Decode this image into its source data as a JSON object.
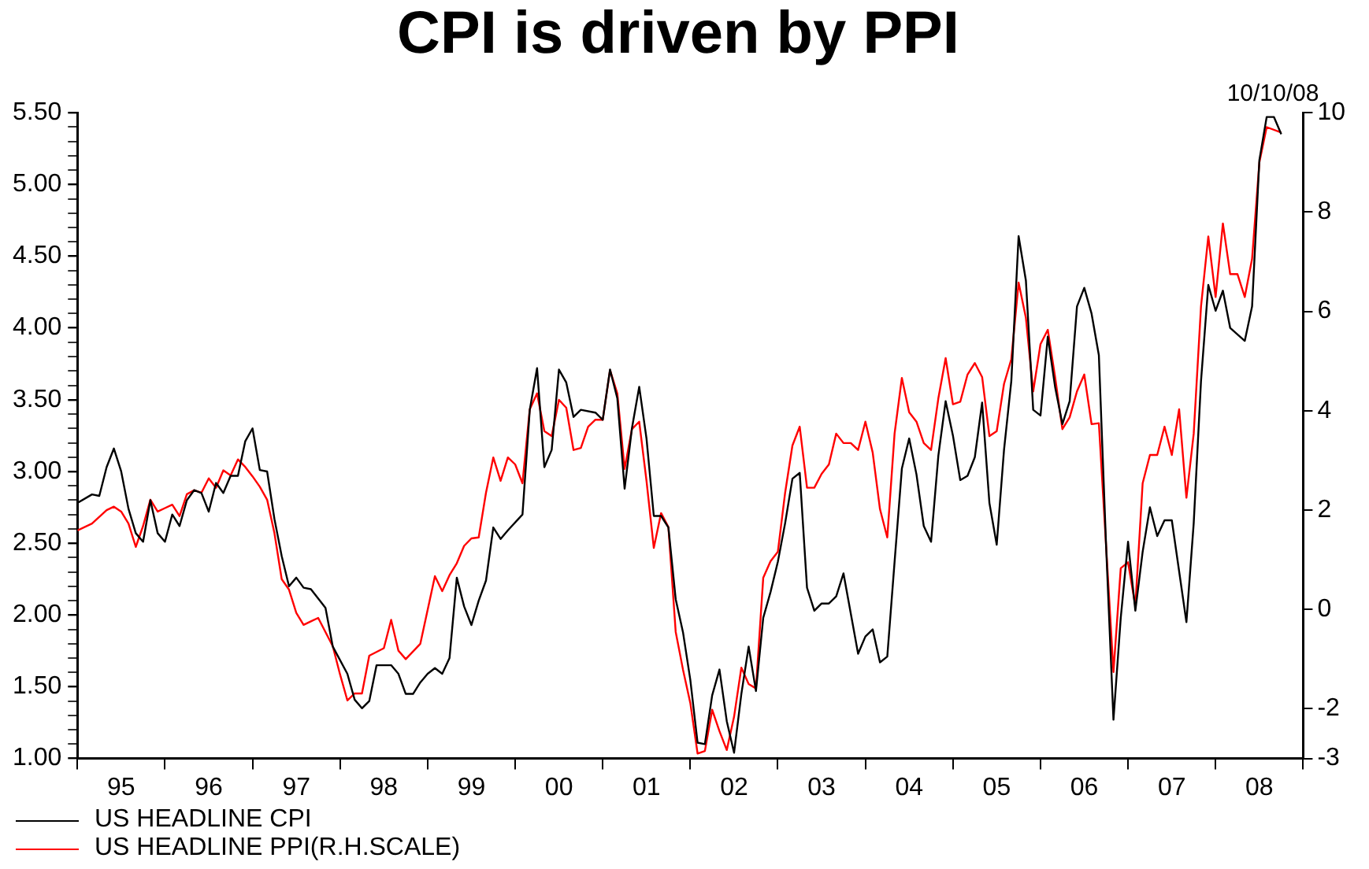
{
  "chart_data": {
    "type": "line",
    "title": "CPI is driven by PPI",
    "annotations": [
      "10/10/08"
    ],
    "legend": "bottom left",
    "marker": "none",
    "line_style": "solid",
    "grid": false,
    "xlim": [
      "1995-01",
      "2009-01"
    ],
    "xticks": [
      {
        "value": "1995-01",
        "label": null
      },
      {
        "value": "1995-07",
        "label": "95"
      },
      {
        "value": "1996-01",
        "label": null
      },
      {
        "value": "1996-07",
        "label": "96"
      },
      {
        "value": "1997-01",
        "label": null
      },
      {
        "value": "1997-07",
        "label": "97"
      },
      {
        "value": "1998-01",
        "label": null
      },
      {
        "value": "1998-07",
        "label": "98"
      },
      {
        "value": "1999-01",
        "label": null
      },
      {
        "value": "1999-07",
        "label": "99"
      },
      {
        "value": "2000-01",
        "label": null
      },
      {
        "value": "2000-07",
        "label": "00"
      },
      {
        "value": "2001-01",
        "label": null
      },
      {
        "value": "2001-07",
        "label": "01"
      },
      {
        "value": "2002-01",
        "label": null
      },
      {
        "value": "2002-07",
        "label": "02"
      },
      {
        "value": "2003-01",
        "label": null
      },
      {
        "value": "2003-07",
        "label": "03"
      },
      {
        "value": "2004-01",
        "label": null
      },
      {
        "value": "2004-07",
        "label": "04"
      },
      {
        "value": "2005-01",
        "label": null
      },
      {
        "value": "2005-07",
        "label": "05"
      },
      {
        "value": "2006-01",
        "label": null
      },
      {
        "value": "2006-07",
        "label": "06"
      },
      {
        "value": "2007-01",
        "label": null
      },
      {
        "value": "2007-07",
        "label": "07"
      },
      {
        "value": "2008-01",
        "label": null
      },
      {
        "value": "2008-07",
        "label": "08"
      },
      {
        "value": "2009-01",
        "label": null
      }
    ],
    "ylim": [
      1,
      5.5
    ],
    "yticks": [
      {
        "value": 1,
        "label": "1.00"
      },
      {
        "value": 1.1,
        "label": null
      },
      {
        "value": 1.2,
        "label": null
      },
      {
        "value": 1.3,
        "label": null
      },
      {
        "value": 1.4,
        "label": null
      },
      {
        "value": 1.5,
        "label": "1.50"
      },
      {
        "value": 1.6,
        "label": null
      },
      {
        "value": 1.7,
        "label": null
      },
      {
        "value": 1.8,
        "label": null
      },
      {
        "value": 1.9,
        "label": null
      },
      {
        "value": 2,
        "label": "2.00"
      },
      {
        "value": 2.1,
        "label": null
      },
      {
        "value": 2.2,
        "label": null
      },
      {
        "value": 2.3,
        "label": null
      },
      {
        "value": 2.4,
        "label": null
      },
      {
        "value": 2.5,
        "label": "2.50"
      },
      {
        "value": 2.6,
        "label": null
      },
      {
        "value": 2.7,
        "label": null
      },
      {
        "value": 2.8,
        "label": null
      },
      {
        "value": 2.9,
        "label": null
      },
      {
        "value": 3,
        "label": "3.00"
      },
      {
        "value": 3.1,
        "label": null
      },
      {
        "value": 3.2,
        "label": null
      },
      {
        "value": 3.3,
        "label": null
      },
      {
        "value": 3.4,
        "label": null
      },
      {
        "value": 3.5,
        "label": "3.50"
      },
      {
        "value": 3.6,
        "label": null
      },
      {
        "value": 3.7,
        "label": null
      },
      {
        "value": 3.8,
        "label": null
      },
      {
        "value": 3.9,
        "label": null
      },
      {
        "value": 4,
        "label": "4.00"
      },
      {
        "value": 4.1,
        "label": null
      },
      {
        "value": 4.2,
        "label": null
      },
      {
        "value": 4.3,
        "label": null
      },
      {
        "value": 4.4,
        "label": null
      },
      {
        "value": 4.5,
        "label": "4.50"
      },
      {
        "value": 4.6,
        "label": null
      },
      {
        "value": 4.7,
        "label": null
      },
      {
        "value": 4.8,
        "label": null
      },
      {
        "value": 4.9,
        "label": null
      },
      {
        "value": 5,
        "label": "5.00"
      },
      {
        "value": 5.1,
        "label": null
      },
      {
        "value": 5.2,
        "label": null
      },
      {
        "value": 5.3,
        "label": null
      },
      {
        "value": 5.4,
        "label": null
      },
      {
        "value": 5.5,
        "label": "5.50"
      }
    ],
    "y2lim": [
      -3,
      10
    ],
    "y2ticks": [
      -3,
      -2,
      0,
      2,
      4,
      6,
      8,
      10
    ],
    "series": [
      {
        "name": "US HEADLINE CPI",
        "color": "#000000",
        "x": [
          "1995-01",
          "1995-03",
          "1995-04",
          "1995-05",
          "1995-06",
          "1995-07",
          "1995-08",
          "1995-09",
          "1995-10",
          "1995-11",
          "1995-12",
          "1996-01",
          "1996-02",
          "1996-03",
          "1996-04",
          "1996-05",
          "1996-06",
          "1996-07",
          "1996-08",
          "1996-09",
          "1996-10",
          "1996-11",
          "1996-12",
          "1997-01",
          "1997-02",
          "1997-03",
          "1997-04",
          "1997-05",
          "1997-06",
          "1997-07",
          "1997-08",
          "1997-09",
          "1997-11",
          "1997-12",
          "1998-02",
          "1998-03",
          "1998-04",
          "1998-05",
          "1998-06",
          "1998-08",
          "1998-09",
          "1998-10",
          "1998-11",
          "1998-12",
          "1999-01",
          "1999-02",
          "1999-03",
          "1999-04",
          "1999-05",
          "1999-06",
          "1999-07",
          "1999-08",
          "1999-09",
          "1999-10",
          "1999-11",
          "1999-12",
          "2000-02",
          "2000-03",
          "2000-04",
          "2000-05",
          "2000-06",
          "2000-07",
          "2000-08",
          "2000-09",
          "2000-10",
          "2000-12",
          "2001-01",
          "2001-02",
          "2001-03",
          "2001-04",
          "2001-05",
          "2001-06",
          "2001-07",
          "2001-08",
          "2001-09",
          "2001-10",
          "2001-11",
          "2001-12",
          "2002-01",
          "2002-02",
          "2002-03",
          "2002-04",
          "2002-05",
          "2002-06",
          "2002-07",
          "2002-08",
          "2002-09",
          "2002-10",
          "2002-11",
          "2002-12",
          "2003-01",
          "2003-02",
          "2003-03",
          "2003-04",
          "2003-05",
          "2003-06",
          "2003-07",
          "2003-08",
          "2003-09",
          "2003-10",
          "2003-11",
          "2003-12",
          "2004-01",
          "2004-02",
          "2004-03",
          "2004-04",
          "2004-05",
          "2004-06",
          "2004-07",
          "2004-08",
          "2004-09",
          "2004-10",
          "2004-11",
          "2004-12",
          "2005-01",
          "2005-02",
          "2005-03",
          "2005-04",
          "2005-05",
          "2005-06",
          "2005-07",
          "2005-08",
          "2005-09",
          "2005-10",
          "2005-11",
          "2005-12",
          "2006-01",
          "2006-02",
          "2006-03",
          "2006-04",
          "2006-05",
          "2006-06",
          "2006-07",
          "2006-08",
          "2006-09",
          "2006-10",
          "2006-11",
          "2006-12",
          "2007-01",
          "2007-02",
          "2007-03",
          "2007-04",
          "2007-05",
          "2007-06",
          "2007-07",
          "2007-09",
          "2007-10",
          "2007-11",
          "2007-12",
          "2008-01",
          "2008-02",
          "2008-03",
          "2008-05",
          "2008-06",
          "2008-07",
          "2008-08",
          "2008-09",
          "2008-10"
        ],
        "values": [
          2.78,
          2.84,
          2.83,
          3.03,
          3.16,
          3.0,
          2.74,
          2.57,
          2.51,
          2.8,
          2.57,
          2.51,
          2.7,
          2.62,
          2.8,
          2.87,
          2.85,
          2.72,
          2.92,
          2.85,
          2.97,
          2.97,
          3.21,
          3.3,
          3.01,
          3.0,
          2.67,
          2.41,
          2.2,
          2.26,
          2.19,
          2.18,
          2.05,
          1.78,
          1.59,
          1.41,
          1.35,
          1.4,
          1.65,
          1.65,
          1.59,
          1.45,
          1.45,
          1.53,
          1.59,
          1.63,
          1.59,
          1.7,
          2.26,
          2.06,
          1.93,
          2.1,
          2.24,
          2.61,
          2.53,
          2.59,
          2.7,
          3.43,
          3.72,
          3.03,
          3.15,
          3.71,
          3.62,
          3.38,
          3.43,
          3.41,
          3.36,
          3.71,
          3.51,
          2.88,
          3.3,
          3.59,
          3.23,
          2.69,
          2.69,
          2.61,
          2.11,
          1.88,
          1.55,
          1.11,
          1.1,
          1.44,
          1.62,
          1.26,
          1.04,
          1.45,
          1.78,
          1.47,
          1.98,
          2.16,
          2.37,
          2.64,
          2.95,
          2.99,
          2.19,
          2.03,
          2.08,
          2.08,
          2.13,
          2.29,
          2.01,
          1.73,
          1.85,
          1.9,
          1.67,
          1.71,
          2.37,
          3.02,
          3.23,
          2.98,
          2.62,
          2.51,
          3.11,
          3.49,
          3.25,
          2.94,
          2.97,
          3.1,
          3.48,
          2.78,
          2.49,
          3.15,
          3.63,
          4.64,
          4.33,
          3.43,
          3.39,
          3.94,
          3.59,
          3.33,
          3.49,
          4.15,
          4.28,
          4.1,
          3.81,
          2.47,
          1.27,
          1.98,
          2.51,
          2.03,
          2.44,
          2.75,
          2.55,
          2.66,
          2.66,
          1.95,
          2.64,
          3.63,
          4.3,
          4.12,
          4.26,
          4.0,
          3.91,
          4.15,
          5.17,
          5.47,
          5.47,
          5.35
        ]
      },
      {
        "name": "US HEADLINE PPI(R.H.SCALE)",
        "color": "#ff0000",
        "axis": "y2",
        "x": [
          "1995-01",
          "1995-03",
          "1995-05",
          "1995-06",
          "1995-07",
          "1995-08",
          "1995-09",
          "1995-10",
          "1995-11",
          "1995-12",
          "1996-01",
          "1996-02",
          "1996-03",
          "1996-04",
          "1996-05",
          "1996-06",
          "1996-07",
          "1996-08",
          "1996-09",
          "1996-10",
          "1996-11",
          "1996-12",
          "1997-01",
          "1997-02",
          "1997-03",
          "1997-04",
          "1997-05",
          "1997-06",
          "1997-07",
          "1997-08",
          "1997-09",
          "1997-10",
          "1997-12",
          "1998-01",
          "1998-02",
          "1998-03",
          "1998-04",
          "1998-05",
          "1998-07",
          "1998-08",
          "1998-09",
          "1998-10",
          "1998-12",
          "1999-02",
          "1999-03",
          "1999-04",
          "1999-05",
          "1999-06",
          "1999-07",
          "1999-08",
          "1999-09",
          "1999-10",
          "1999-11",
          "1999-12",
          "2000-01",
          "2000-02",
          "2000-03",
          "2000-04",
          "2000-05",
          "2000-06",
          "2000-07",
          "2000-08",
          "2000-09",
          "2000-10",
          "2000-11",
          "2000-12",
          "2001-01",
          "2001-02",
          "2001-03",
          "2001-04",
          "2001-05",
          "2001-06",
          "2001-07",
          "2001-08",
          "2001-09",
          "2001-10",
          "2001-11",
          "2001-12",
          "2002-01",
          "2002-02",
          "2002-03",
          "2002-04",
          "2002-05",
          "2002-06",
          "2002-07",
          "2002-08",
          "2002-09",
          "2002-10",
          "2002-11",
          "2002-12",
          "2003-01",
          "2003-02",
          "2003-03",
          "2003-04",
          "2003-05",
          "2003-06",
          "2003-07",
          "2003-08",
          "2003-09",
          "2003-10",
          "2003-11",
          "2003-12",
          "2004-01",
          "2004-02",
          "2004-03",
          "2004-04",
          "2004-05",
          "2004-06",
          "2004-07",
          "2004-08",
          "2004-09",
          "2004-10",
          "2004-11",
          "2004-12",
          "2005-01",
          "2005-02",
          "2005-03",
          "2005-04",
          "2005-05",
          "2005-06",
          "2005-07",
          "2005-08",
          "2005-09",
          "2005-10",
          "2005-11",
          "2005-12",
          "2006-01",
          "2006-02",
          "2006-03",
          "2006-04",
          "2006-05",
          "2006-06",
          "2006-07",
          "2006-08",
          "2006-09",
          "2006-10",
          "2006-11",
          "2006-12",
          "2007-01",
          "2007-02",
          "2007-03",
          "2007-04",
          "2007-05",
          "2007-06",
          "2007-07",
          "2007-08",
          "2007-09",
          "2007-10",
          "2007-11",
          "2007-12",
          "2008-01",
          "2008-02",
          "2008-03",
          "2008-04",
          "2008-05",
          "2008-06",
          "2008-07",
          "2008-08",
          "2008-10"
        ],
        "values": [
          1.59,
          1.73,
          2.0,
          2.07,
          1.97,
          1.73,
          1.26,
          1.68,
          2.21,
          1.97,
          2.04,
          2.11,
          1.88,
          2.32,
          2.4,
          2.35,
          2.64,
          2.45,
          2.8,
          2.7,
          3.02,
          2.87,
          2.68,
          2.47,
          2.21,
          1.54,
          0.61,
          0.4,
          -0.07,
          -0.31,
          -0.24,
          -0.17,
          -0.74,
          -1.31,
          -1.83,
          -1.69,
          -1.69,
          -0.93,
          -0.78,
          -0.21,
          -0.83,
          -1.0,
          -0.69,
          0.67,
          0.37,
          0.69,
          0.93,
          1.28,
          1.43,
          1.45,
          2.35,
          3.06,
          2.59,
          3.06,
          2.92,
          2.54,
          4.03,
          4.35,
          3.59,
          3.49,
          4.22,
          4.06,
          3.21,
          3.25,
          3.68,
          3.82,
          3.82,
          4.82,
          4.35,
          2.83,
          3.63,
          3.78,
          2.59,
          1.24,
          1.94,
          1.66,
          -0.45,
          -1.21,
          -1.88,
          -2.9,
          -2.85,
          -2.02,
          -2.45,
          -2.83,
          -2.16,
          -1.17,
          -1.5,
          -1.59,
          0.64,
          0.97,
          1.16,
          2.35,
          3.3,
          3.68,
          2.45,
          2.45,
          2.73,
          2.92,
          3.54,
          3.35,
          3.35,
          3.21,
          3.78,
          3.16,
          2.02,
          1.45,
          3.54,
          4.66,
          3.97,
          3.78,
          3.35,
          3.21,
          4.25,
          5.06,
          4.13,
          4.18,
          4.73,
          4.96,
          4.68,
          3.49,
          3.59,
          4.54,
          5.04,
          6.58,
          5.87,
          4.39,
          5.34,
          5.63,
          4.68,
          3.63,
          3.87,
          4.39,
          4.73,
          3.73,
          3.75,
          1.26,
          -1.26,
          0.83,
          0.95,
          0.07,
          2.54,
          3.11,
          3.11,
          3.68,
          3.11,
          4.03,
          2.25,
          3.54,
          6.1,
          7.51,
          6.29,
          7.77,
          6.75,
          6.75,
          6.29,
          7.06,
          9.0,
          9.71,
          9.6
        ]
      }
    ]
  }
}
